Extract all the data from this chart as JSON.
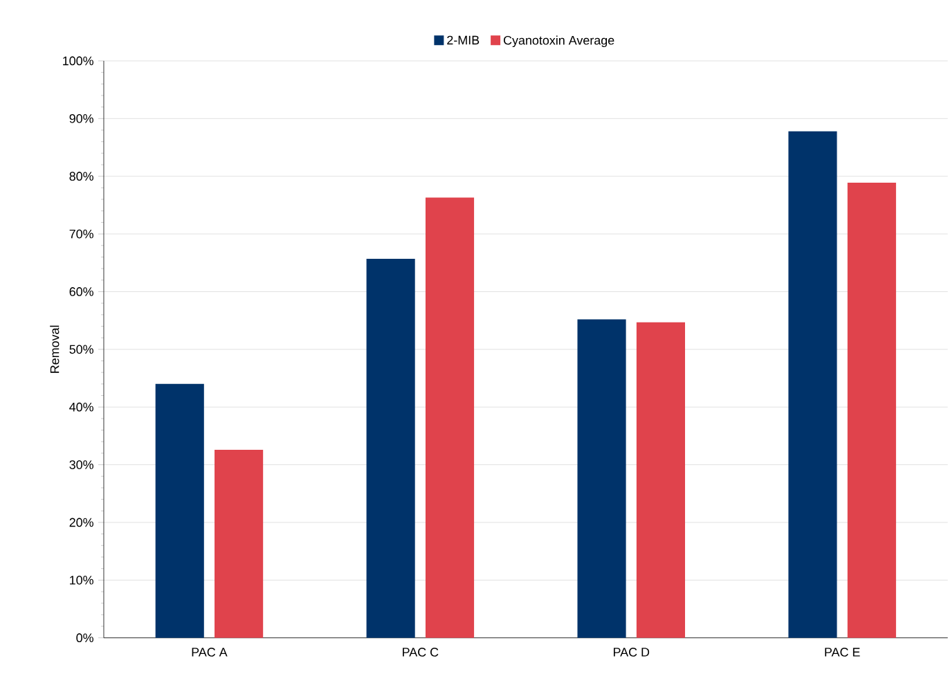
{
  "chart_data": {
    "type": "bar",
    "ylabel": "Removal",
    "categories": [
      "PAC A",
      "PAC C",
      "PAC D",
      "PAC E"
    ],
    "series": [
      {
        "name": "2-MIB",
        "color": "#00336a",
        "values": [
          44,
          65.7,
          55.2,
          87.8
        ]
      },
      {
        "name": "Cyanotoxin Average",
        "color": "#e0434c",
        "values": [
          32.6,
          76.3,
          54.7,
          78.9
        ]
      }
    ],
    "ylim": [
      0,
      100
    ],
    "yticks": [
      {
        "value": 0,
        "label": "0%"
      },
      {
        "value": 10,
        "label": "10%"
      },
      {
        "value": 20,
        "label": "20%"
      },
      {
        "value": 30,
        "label": "30%"
      },
      {
        "value": 40,
        "label": "40%"
      },
      {
        "value": 50,
        "label": "50%"
      },
      {
        "value": 60,
        "label": "60%"
      },
      {
        "value": 70,
        "label": "70%"
      },
      {
        "value": 80,
        "label": "80%"
      },
      {
        "value": 90,
        "label": "90%"
      },
      {
        "value": 100,
        "label": "100%"
      }
    ],
    "grid": "y",
    "legend": "top"
  }
}
